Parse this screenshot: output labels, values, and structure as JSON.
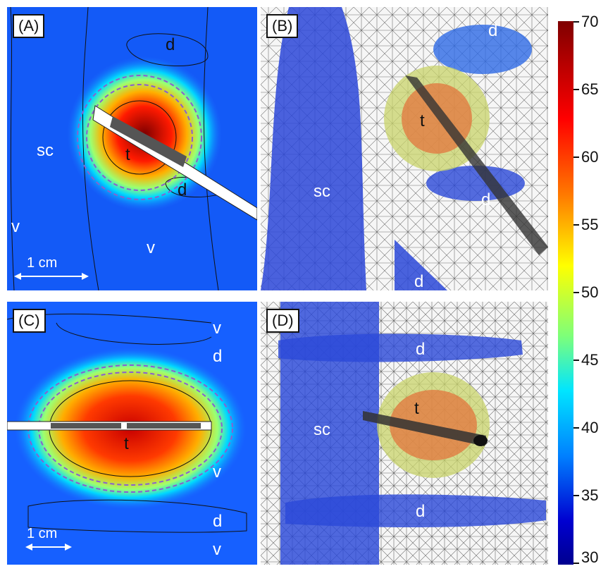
{
  "panels": {
    "A": {
      "label": "(A)",
      "labels": {
        "d1": "d",
        "d2": "d",
        "sc": "sc",
        "t": "t",
        "v1": "v",
        "v2": "v"
      },
      "scale": "1 cm"
    },
    "B": {
      "label": "(B)",
      "labels": {
        "d1": "d",
        "t": "t",
        "sc": "sc",
        "d2": "d",
        "d3": "d"
      }
    },
    "C": {
      "label": "(C)",
      "labels": {
        "v1": "v",
        "d1": "d",
        "t": "t",
        "v2": "v",
        "d2": "d",
        "v3": "v"
      },
      "scale": "1 cm"
    },
    "D": {
      "label": "(D)",
      "labels": {
        "d1": "d",
        "sc": "sc",
        "t": "t",
        "d2": "d"
      }
    }
  },
  "colorbar": {
    "ticks": [
      "70",
      "65",
      "60",
      "55",
      "50",
      "45",
      "40",
      "35",
      "30"
    ],
    "colors": [
      "#7f0000",
      "#ff0000",
      "#ff7a00",
      "#ffff00",
      "#7dff7a",
      "#00e5ff",
      "#0080ff",
      "#0000d0",
      "#00008f"
    ]
  }
}
